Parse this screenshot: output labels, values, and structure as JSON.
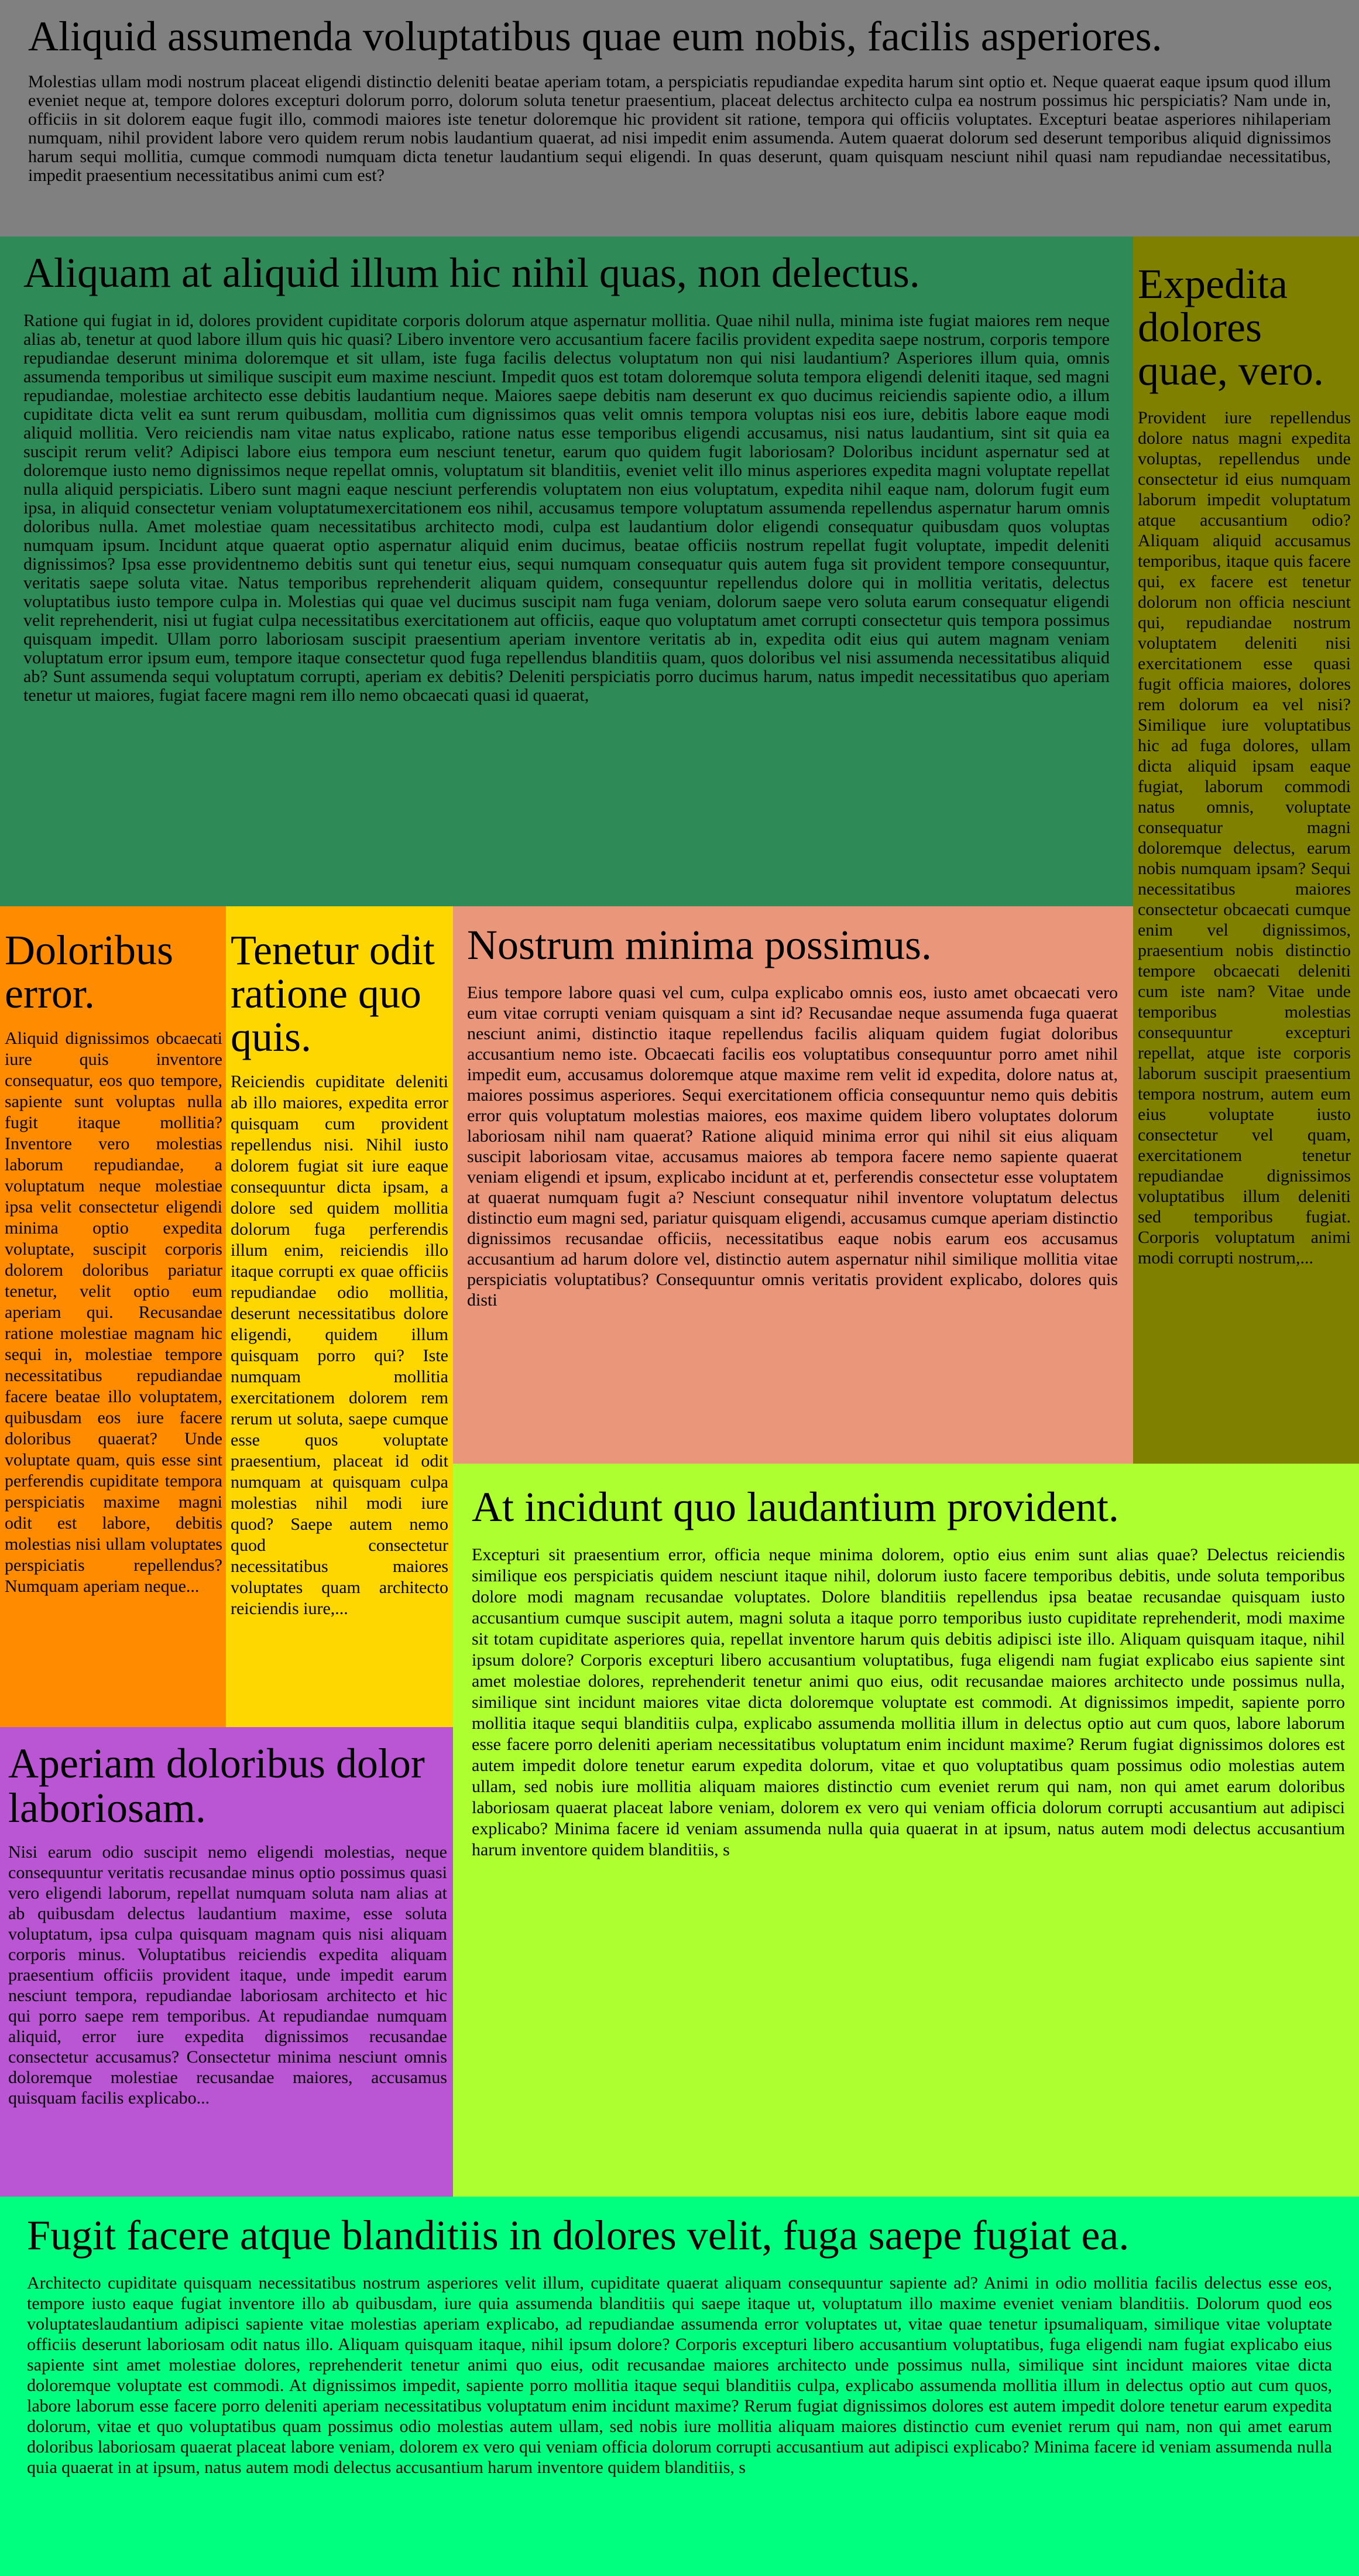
{
  "sections": [
    {
      "heading": "Aliquid assumenda voluptatibus quae eum nobis, facilis asperiores.",
      "body": "Molestias ullam modi nostrum placeat eligendi distinctio deleniti beatae aperiam totam, a perspiciatis repudiandae expedita harum sint optio et. Neque quaerat eaque ipsum quod illum eveniet neque at, tempore dolores excepturi dolorum porro, dolorum soluta tenetur praesentium, placeat delectus architecto culpa ea nostrum possimus hic perspiciatis? Nam unde in, officiis in sit dolorem eaque fugit illo, commodi maiores iste tenetur doloremque hic provident sit ratione, tempora qui officiis voluptates. Excepturi beatae asperiores nihilaperiam numquam, nihil provident labore vero quidem rerum nobis laudantium quaerat, ad nisi impedit enim assumenda. Autem quaerat dolorum sed deserunt temporibus aliquid dignissimos harum sequi mollitia, cumque commodi numquam dicta tenetur laudantium sequi eligendi. In quas deserunt, quam quisquam nesciunt nihil quasi nam repudiandae necessitatibus, impedit praesentium necessitatibus animi cum est?"
    },
    {
      "heading": "Aliquam at aliquid illum hic nihil quas, non delectus.",
      "body": "Ratione qui fugiat in id, dolores provident cupiditate corporis dolorum atque aspernatur mollitia. Quae nihil nulla, minima iste fugiat maiores rem neque alias ab, tenetur at quod labore illum quis hic quasi? Libero inventore vero accusantium facere facilis provident expedita saepe nostrum, corporis tempore repudiandae deserunt minima doloremque et sit ullam, iste fuga facilis delectus voluptatum non qui nisi laudantium? Asperiores illum quia, omnis assumenda temporibus ut similique suscipit eum maxime nesciunt. Impedit quos est totam doloremque soluta tempora eligendi deleniti itaque, sed magni repudiandae, molestiae architecto esse debitis laudantium neque. Maiores saepe debitis nam deserunt ex quo ducimus reiciendis sapiente odio, a illum cupiditate dicta velit ea sunt rerum quibusdam, mollitia cum dignissimos quas velit omnis tempora voluptas nisi eos iure, debitis labore eaque modi aliquid mollitia. Vero reiciendis nam vitae natus explicabo, ratione natus esse temporibus eligendi accusamus, nisi natus laudantium, sint sit quia ea suscipit rerum velit? Adipisci labore eius tempora eum nesciunt tenetur, earum quo quidem fugit laboriosam? Doloribus incidunt aspernatur sed at doloremque iusto nemo dignissimos neque repellat omnis, voluptatum sit blanditiis, eveniet velit illo minus asperiores expedita magni voluptate repellat nulla aliquid perspiciatis. Libero sunt magni eaque nesciunt perferendis voluptatem non eius voluptatum, expedita nihil eaque nam, dolorum fugit eum ipsa, in aliquid consectetur veniam voluptatumexercitationem eos nihil, accusamus tempore voluptatum assumenda repellendus aspernatur harum omnis doloribus nulla. Amet molestiae quam necessitatibus architecto modi, culpa est laudantium dolor eligendi consequatur quibusdam quos voluptas numquam ipsum. Incidunt atque quaerat optio aspernatur aliquid enim ducimus, beatae officiis nostrum repellat fugit voluptate, impedit deleniti dignissimos? Ipsa esse providentnemo debitis sunt qui tenetur eius, sequi numquam consequatur quis autem fuga sit provident tempore consequuntur, veritatis saepe soluta vitae. Natus temporibus reprehenderit aliquam quidem, consequuntur repellendus dolore qui in mollitia veritatis, delectus voluptatibus iusto tempore culpa in. Molestias qui quae vel ducimus suscipit nam fuga veniam, dolorum saepe vero soluta earum consequatur eligendi velit reprehenderit, nisi ut fugiat culpa necessitatibus exercitationem aut officiis, eaque quo voluptatum amet corrupti consectetur quis tempora possimus quisquam impedit. Ullam porro laboriosam suscipit praesentium aperiam inventore veritatis ab in, expedita odit eius qui autem magnam veniam voluptatum error ipsum eum, tempore itaque consectetur quod fuga repellendus blanditiis quam, quos doloribus vel nisi assumenda necessitatibus aliquid ab? Sunt assumenda sequi voluptatum corrupti, aperiam ex debitis? Deleniti perspiciatis porro ducimus harum, natus impedit necessitatibus quo aperiam tenetur ut maiores, fugiat facere magni rem illo nemo obcaecati quasi id quaerat,"
    },
    {
      "heading": "Expedita dolores quae, vero.",
      "body": "Provident iure repellendus dolore natus magni expedita voluptas, repellendus unde consectetur id eius numquam laborum impedit voluptatum atque accusantium odio? Aliquam aliquid accusamus temporibus, itaque quis facere qui, ex facere est tenetur dolorum non officia nesciunt qui, repudiandae nostrum voluptatem deleniti nisi exercitationem esse quasi fugit officia maiores, dolores rem dolorum ea vel nisi? Similique iure voluptatibus hic ad fuga dolores, ullam dicta aliquid ipsam eaque fugiat, laborum commodi natus omnis, voluptate consequatur magni doloremque delectus, earum nobis numquam ipsam? Sequi necessitatibus maiores consectetur obcaecati cumque enim vel dignissimos, praesentium nobis distinctio tempore obcaecati deleniti cum iste nam? Vitae unde temporibus molestias consequuntur excepturi repellat, atque iste corporis laborum suscipit praesentium tempora nostrum, autem eum eius voluptate iusto consectetur vel quam, exercitationem tenetur repudiandae dignissimos voluptatibus illum deleniti sed temporibus fugiat. Corporis voluptatum animi modi corrupti nostrum,..."
    },
    {
      "heading": "Doloribus error.",
      "body": "Aliquid dignissimos obcaecati iure quis inventore consequatur, eos quo tempore, sapiente sunt voluptas nulla fugit itaque mollitia? Inventore vero molestias laborum repudiandae, a voluptatum neque molestiae ipsa velit consectetur eligendi minima optio expedita voluptate, suscipit corporis dolorem doloribus pariatur tenetur, velit optio eum aperiam qui. Recusandae ratione molestiae magnam hic sequi in, molestiae tempore necessitatibus repudiandae facere beatae illo voluptatem, quibusdam eos iure facere doloribus quaerat? Unde voluptate quam, quis esse sint perferendis cupiditate tempora perspiciatis maxime magni odit est labore, debitis molestias nisi ullam voluptates perspiciatis repellendus? Numquam aperiam neque..."
    },
    {
      "heading": "Tenetur odit ratione quo quis.",
      "body": "Reiciendis cupiditate deleniti ab illo maiores, expedita error quisquam cum provident repellendus nisi. Nihil iusto dolorem fugiat sit iure eaque consequuntur dicta ipsam, a dolore sed quidem mollitia dolorum fuga perferendis illum enim, reiciendis illo itaque corrupti ex quae officiis repudiandae odio mollitia, deserunt necessitatibus dolore eligendi, quidem illum quisquam porro qui? Iste numquam mollitia exercitationem dolorem rem rerum ut soluta, saepe cumque esse quos voluptate praesentium, placeat id odit numquam at quisquam culpa molestias nihil modi iure quod? Saepe autem nemo quod consectetur necessitatibus maiores voluptates quam architecto reiciendis iure,..."
    },
    {
      "heading": "Nostrum minima possimus.",
      "body": "Eius tempore labore quasi vel cum, culpa explicabo omnis eos, iusto amet obcaecati vero eum vitae corrupti veniam quisquam a sint id? Recusandae neque assumenda fuga quaerat nesciunt animi, distinctio itaque repellendus facilis aliquam quidem fugiat doloribus accusantium nemo iste. Obcaecati facilis eos voluptatibus consequuntur porro amet nihil impedit eum, accusamus doloremque atque maxime rem velit id expedita, dolore natus at, maiores possimus asperiores. Sequi exercitationem officia consequuntur nemo quis debitis error quis voluptatum molestias maiores, eos maxime quidem libero voluptates dolorum laboriosam nihil nam quaerat? Ratione aliquid minima error qui nihil sit eius aliquam suscipit laboriosam vitae, accusamus maiores ab tempora facere nemo sapiente quaerat veniam eligendi et ipsum, explicabo incidunt at et, perferendis consectetur esse voluptatem at quaerat numquam fugit a? Nesciunt consequatur nihil inventore voluptatum delectus distinctio eum magni sed, pariatur quisquam eligendi, accusamus cumque aperiam distinctio dignissimos recusandae officiis, necessitatibus eaque nobis earum eos accusamus accusantium ad harum dolore vel, distinctio autem aspernatur nihil similique mollitia vitae perspiciatis voluptatibus? Consequuntur omnis veritatis provident explicabo, dolores quis disti"
    },
    {
      "heading": "Aperiam doloribus dolor laboriosam.",
      "body": "Nisi earum odio suscipit nemo eligendi molestias, neque consequuntur veritatis recusandae minus optio possimus quasi vero eligendi laborum, repellat numquam soluta nam alias at ab quibusdam delectus laudantium maxime, esse soluta voluptatum, ipsa culpa quisquam magnam quis nisi aliquam corporis minus. Voluptatibus reiciendis expedita aliquam praesentium officiis provident itaque, unde impedit earum nesciunt tempora, repudiandae laboriosam architecto et hic qui porro saepe rem temporibus. At repudiandae numquam aliquid, error iure expedita dignissimos recusandae consectetur accusamus? Consectetur minima nesciunt omnis doloremque molestiae recusandae maiores, accusamus quisquam facilis explicabo..."
    },
    {
      "heading": "At incidunt quo laudantium provident.",
      "body": "Excepturi sit praesentium error, officia neque minima dolorem, optio eius enim sunt alias quae? Delectus reiciendis similique eos perspiciatis quidem nesciunt itaque nihil, dolorum iusto facere temporibus debitis, unde soluta temporibus dolore modi magnam recusandae voluptates. Dolore blanditiis repellendus ipsa beatae recusandae quisquam iusto accusantium cumque suscipit autem, magni soluta a itaque porro temporibus iusto cupiditate reprehenderit, modi maxime sit totam cupiditate asperiores quia, repellat inventore harum quis debitis adipisci iste illo. Aliquam quisquam itaque, nihil ipsum dolore? Corporis excepturi libero accusantium voluptatibus, fuga eligendi nam fugiat explicabo eius sapiente sint amet molestiae dolores, reprehenderit tenetur animi quo eius, odit recusandae maiores architecto unde possimus nulla, similique sint incidunt maiores vitae dicta doloremque voluptate est commodi. At dignissimos impedit, sapiente porro mollitia itaque sequi blanditiis culpa, explicabo assumenda mollitia illum in delectus optio aut cum quos, labore laborum esse facere porro deleniti aperiam necessitatibus voluptatum enim incidunt maxime? Rerum fugiat dignissimos dolores est autem impedit dolore tenetur earum expedita dolorum, vitae et quo voluptatibus quam possimus odio molestias autem ullam, sed nobis iure mollitia aliquam maiores distinctio cum eveniet rerum qui nam, non qui amet earum doloribus laboriosam quaerat placeat labore veniam, dolorem ex vero qui veniam officia dolorum corrupti accusantium aut adipisci explicabo? Minima facere id veniam assumenda nulla quia quaerat in at ipsum, natus autem modi delectus accusantium harum inventore quidem blanditiis, s"
    },
    {
      "heading": "Fugit facere atque blanditiis in dolores velit, fuga saepe fugiat ea.",
      "body": "Architecto cupiditate quisquam necessitatibus nostrum asperiores velit illum, cupiditate quaerat aliquam consequuntur sapiente ad? Animi in odio mollitia facilis delectus esse eos, tempore iusto eaque fugiat inventore illo ab quibusdam, iure quia assumenda blanditiis qui saepe itaque ut, voluptatum illo maxime eveniet veniam blanditiis. Dolorum quod eos voluptateslaudantium adipisci sapiente vitae molestias aperiam explicabo, ad repudiandae assumenda error voluptates ut, vitae quae tenetur ipsumaliquam, similique vitae voluptate officiis deserunt laboriosam odit natus illo. Aliquam quisquam itaque, nihil ipsum dolore? Corporis excepturi libero accusantium voluptatibus, fuga eligendi nam fugiat explicabo eius sapiente sint amet molestiae dolores, reprehenderit tenetur animi quo eius, odit recusandae maiores architecto unde possimus nulla, similique sint incidunt maiores vitae dicta doloremque voluptate est commodi. At dignissimos impedit, sapiente porro mollitia itaque sequi blanditiis culpa, explicabo assumenda mollitia illum in delectus optio aut cum quos, labore laborum esse facere porro deleniti aperiam necessitatibus voluptatum enim incidunt maxime? Rerum fugiat dignissimos dolores est autem impedit dolore tenetur earum expedita dolorum, vitae et quo voluptatibus quam possimus odio molestias autem ullam, sed nobis iure mollitia aliquam maiores distinctio cum eveniet rerum qui nam, non qui amet earum doloribus laboriosam quaerat placeat labore veniam, dolorem ex vero qui veniam officia dolorum corrupti accusantium aut adipisci explicabo? Minima facere id veniam assumenda nulla quia quaerat in at ipsum, natus autem modi delectus accusantium harum inventore quidem blanditiis, s"
    }
  ]
}
